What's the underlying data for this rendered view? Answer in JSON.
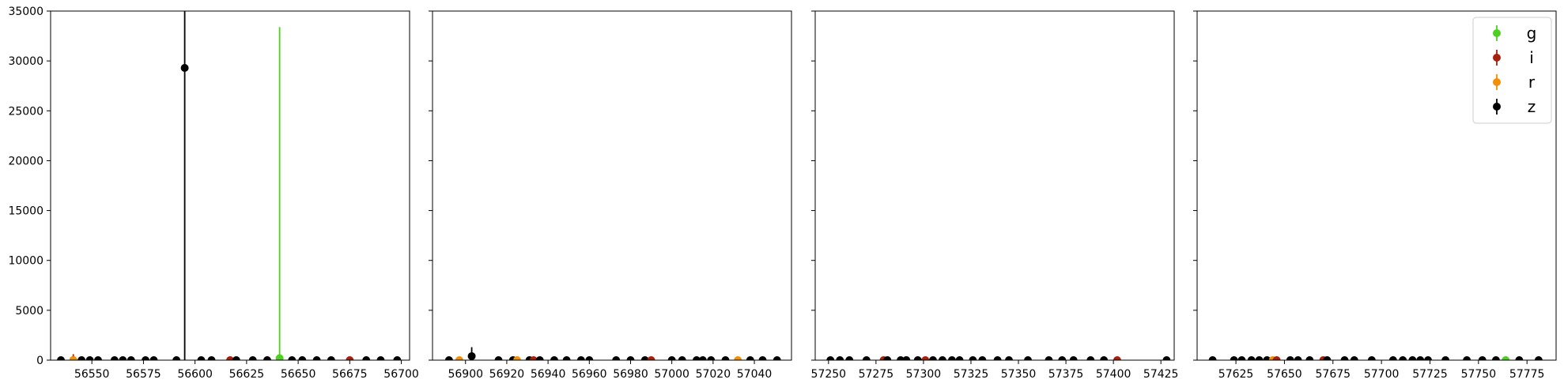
{
  "chart_data": {
    "type": "scatter",
    "shared_y": true,
    "ylim": [
      0,
      35000
    ],
    "yticks": [
      0,
      5000,
      10000,
      15000,
      20000,
      25000,
      30000,
      35000
    ],
    "legend": {
      "position": "top-right",
      "entries": [
        {
          "label": "g",
          "color": "#4fcf22"
        },
        {
          "label": "i",
          "color": "#a8200c"
        },
        {
          "label": "r",
          "color": "#f18f06"
        },
        {
          "label": "z",
          "color": "#000000"
        }
      ]
    },
    "panels": [
      {
        "xlim": [
          56530,
          56704
        ],
        "xticks": [
          56550,
          56575,
          56600,
          56625,
          56650,
          56675,
          56700
        ],
        "points": [
          {
            "band": "z",
            "x": 56535,
            "y": 0,
            "err": 0
          },
          {
            "band": "i",
            "x": 56541,
            "y": 0,
            "err": 600
          },
          {
            "band": "r",
            "x": 56541,
            "y": 0,
            "err": 0
          },
          {
            "band": "z",
            "x": 56545,
            "y": 0,
            "err": 0
          },
          {
            "band": "z",
            "x": 56549,
            "y": 0,
            "err": 0
          },
          {
            "band": "z",
            "x": 56553,
            "y": 0,
            "err": 0
          },
          {
            "band": "z",
            "x": 56561,
            "y": 0,
            "err": 0
          },
          {
            "band": "z",
            "x": 56565,
            "y": 0,
            "err": 0
          },
          {
            "band": "z",
            "x": 56569,
            "y": 0,
            "err": 0
          },
          {
            "band": "z",
            "x": 56576,
            "y": 0,
            "err": 0
          },
          {
            "band": "z",
            "x": 56580,
            "y": 0,
            "err": 0
          },
          {
            "band": "z",
            "x": 56591,
            "y": 0,
            "err": 0
          },
          {
            "band": "z",
            "x": 56595,
            "y": 29300,
            "err": 35000
          },
          {
            "band": "z",
            "x": 56603,
            "y": 0,
            "err": 0
          },
          {
            "band": "z",
            "x": 56608,
            "y": 0,
            "err": 0
          },
          {
            "band": "i",
            "x": 56617,
            "y": 0,
            "err": 0
          },
          {
            "band": "z",
            "x": 56620,
            "y": 0,
            "err": 0
          },
          {
            "band": "z",
            "x": 56628,
            "y": 0,
            "err": 0
          },
          {
            "band": "z",
            "x": 56635,
            "y": 0,
            "err": 0
          },
          {
            "band": "g",
            "x": 56641,
            "y": 200,
            "err": 33200
          },
          {
            "band": "z",
            "x": 56647,
            "y": 0,
            "err": 0
          },
          {
            "band": "z",
            "x": 56652,
            "y": 0,
            "err": 0
          },
          {
            "band": "z",
            "x": 56659,
            "y": 0,
            "err": 0
          },
          {
            "band": "z",
            "x": 56666,
            "y": 0,
            "err": 0
          },
          {
            "band": "i",
            "x": 56675,
            "y": 0,
            "err": 0
          },
          {
            "band": "z",
            "x": 56683,
            "y": 0,
            "err": 0
          },
          {
            "band": "z",
            "x": 56690,
            "y": 0,
            "err": 0
          },
          {
            "band": "z",
            "x": 56698,
            "y": 0,
            "err": 0
          }
        ]
      },
      {
        "xlim": [
          56884,
          57058
        ],
        "xticks": [
          56900,
          56920,
          56940,
          56960,
          56980,
          57000,
          57020,
          57040
        ],
        "points": [
          {
            "band": "z",
            "x": 56892,
            "y": 0,
            "err": 0
          },
          {
            "band": "r",
            "x": 56897,
            "y": 0,
            "err": 0
          },
          {
            "band": "z",
            "x": 56903,
            "y": 400,
            "err": 900
          },
          {
            "band": "z",
            "x": 56916,
            "y": 0,
            "err": 0
          },
          {
            "band": "z",
            "x": 56923,
            "y": 0,
            "err": 0
          },
          {
            "band": "r",
            "x": 56925,
            "y": 0,
            "err": 0
          },
          {
            "band": "z",
            "x": 56931,
            "y": 0,
            "err": 0
          },
          {
            "band": "i",
            "x": 56933,
            "y": 0,
            "err": 0
          },
          {
            "band": "z",
            "x": 56936,
            "y": 0,
            "err": 0
          },
          {
            "band": "z",
            "x": 56943,
            "y": 0,
            "err": 0
          },
          {
            "band": "z",
            "x": 56949,
            "y": 0,
            "err": 0
          },
          {
            "band": "z",
            "x": 56956,
            "y": 0,
            "err": 0
          },
          {
            "band": "z",
            "x": 56960,
            "y": 0,
            "err": 0
          },
          {
            "band": "z",
            "x": 56973,
            "y": 0,
            "err": 0
          },
          {
            "band": "z",
            "x": 56980,
            "y": 0,
            "err": 0
          },
          {
            "band": "z",
            "x": 56987,
            "y": 0,
            "err": 0
          },
          {
            "band": "i",
            "x": 56990,
            "y": 0,
            "err": 0
          },
          {
            "band": "z",
            "x": 57000,
            "y": 0,
            "err": 0
          },
          {
            "band": "z",
            "x": 57005,
            "y": 0,
            "err": 0
          },
          {
            "band": "z",
            "x": 57012,
            "y": 0,
            "err": 0
          },
          {
            "band": "z",
            "x": 57015,
            "y": 0,
            "err": 0
          },
          {
            "band": "z",
            "x": 57019,
            "y": 0,
            "err": 0
          },
          {
            "band": "z",
            "x": 57026,
            "y": 0,
            "err": 0
          },
          {
            "band": "r",
            "x": 57032,
            "y": 0,
            "err": 0
          },
          {
            "band": "z",
            "x": 57038,
            "y": 0,
            "err": 0
          },
          {
            "band": "z",
            "x": 57044,
            "y": 0,
            "err": 0
          },
          {
            "band": "z",
            "x": 57051,
            "y": 0,
            "err": 0
          }
        ]
      },
      {
        "xlim": [
          57243,
          57432
        ],
        "xticks": [
          57250,
          57275,
          57300,
          57325,
          57350,
          57375,
          57400,
          57425
        ],
        "points": [
          {
            "band": "z",
            "x": 57251,
            "y": 0,
            "err": 0
          },
          {
            "band": "z",
            "x": 57256,
            "y": 0,
            "err": 0
          },
          {
            "band": "z",
            "x": 57261,
            "y": 0,
            "err": 0
          },
          {
            "band": "z",
            "x": 57270,
            "y": 0,
            "err": 0
          },
          {
            "band": "i",
            "x": 57279,
            "y": 0,
            "err": 0
          },
          {
            "band": "z",
            "x": 57281,
            "y": 0,
            "err": 0
          },
          {
            "band": "z",
            "x": 57288,
            "y": 0,
            "err": 0
          },
          {
            "band": "z",
            "x": 57291,
            "y": 0,
            "err": 0
          },
          {
            "band": "z",
            "x": 57297,
            "y": 0,
            "err": 0
          },
          {
            "band": "i",
            "x": 57301,
            "y": 0,
            "err": 0
          },
          {
            "band": "z",
            "x": 57305,
            "y": 0,
            "err": 0
          },
          {
            "band": "z",
            "x": 57310,
            "y": 0,
            "err": 0
          },
          {
            "band": "z",
            "x": 57315,
            "y": 0,
            "err": 0
          },
          {
            "band": "z",
            "x": 57319,
            "y": 0,
            "err": 0
          },
          {
            "band": "z",
            "x": 57326,
            "y": 0,
            "err": 0
          },
          {
            "band": "z",
            "x": 57331,
            "y": 0,
            "err": 0
          },
          {
            "band": "z",
            "x": 57339,
            "y": 0,
            "err": 0
          },
          {
            "band": "z",
            "x": 57345,
            "y": 0,
            "err": 0
          },
          {
            "band": "z",
            "x": 57355,
            "y": 0,
            "err": 0
          },
          {
            "band": "z",
            "x": 57366,
            "y": 0,
            "err": 0
          },
          {
            "band": "z",
            "x": 57373,
            "y": 0,
            "err": 0
          },
          {
            "band": "z",
            "x": 57379,
            "y": 0,
            "err": 0
          },
          {
            "band": "z",
            "x": 57388,
            "y": 0,
            "err": 0
          },
          {
            "band": "z",
            "x": 57395,
            "y": 0,
            "err": 0
          },
          {
            "band": "i",
            "x": 57402,
            "y": 0,
            "err": 0
          },
          {
            "band": "z",
            "x": 57428,
            "y": 0,
            "err": 0
          }
        ]
      },
      {
        "xlim": [
          57605,
          57790
        ],
        "xticks": [
          57625,
          57650,
          57675,
          57700,
          57725,
          57750,
          57775
        ],
        "points": [
          {
            "band": "z",
            "x": 57613,
            "y": 0,
            "err": 0
          },
          {
            "band": "z",
            "x": 57624,
            "y": 0,
            "err": 0
          },
          {
            "band": "z",
            "x": 57628,
            "y": 0,
            "err": 0
          },
          {
            "band": "z",
            "x": 57633,
            "y": 0,
            "err": 0
          },
          {
            "band": "z",
            "x": 57637,
            "y": 0,
            "err": 0
          },
          {
            "band": "z",
            "x": 57641,
            "y": 0,
            "err": 0
          },
          {
            "band": "r",
            "x": 57644,
            "y": 0,
            "err": 0
          },
          {
            "band": "i",
            "x": 57646,
            "y": 0,
            "err": 0
          },
          {
            "band": "z",
            "x": 57653,
            "y": 0,
            "err": 0
          },
          {
            "band": "z",
            "x": 57657,
            "y": 0,
            "err": 0
          },
          {
            "band": "z",
            "x": 57663,
            "y": 0,
            "err": 0
          },
          {
            "band": "i",
            "x": 57670,
            "y": 0,
            "err": 0
          },
          {
            "band": "z",
            "x": 57672,
            "y": 0,
            "err": 0
          },
          {
            "band": "z",
            "x": 57681,
            "y": 0,
            "err": 0
          },
          {
            "band": "z",
            "x": 57686,
            "y": 0,
            "err": 0
          },
          {
            "band": "z",
            "x": 57695,
            "y": 0,
            "err": 0
          },
          {
            "band": "z",
            "x": 57706,
            "y": 0,
            "err": 0
          },
          {
            "band": "z",
            "x": 57711,
            "y": 0,
            "err": 0
          },
          {
            "band": "z",
            "x": 57716,
            "y": 0,
            "err": 0
          },
          {
            "band": "z",
            "x": 57720,
            "y": 0,
            "err": 0
          },
          {
            "band": "z",
            "x": 57724,
            "y": 0,
            "err": 0
          },
          {
            "band": "z",
            "x": 57733,
            "y": 0,
            "err": 0
          },
          {
            "band": "z",
            "x": 57744,
            "y": 0,
            "err": 0
          },
          {
            "band": "z",
            "x": 57752,
            "y": 0,
            "err": 0
          },
          {
            "band": "z",
            "x": 57759,
            "y": 0,
            "err": 0
          },
          {
            "band": "g",
            "x": 57764,
            "y": 0,
            "err": 0
          },
          {
            "band": "z",
            "x": 57771,
            "y": 0,
            "err": 0
          },
          {
            "band": "z",
            "x": 57781,
            "y": 0,
            "err": 0
          }
        ]
      }
    ]
  }
}
